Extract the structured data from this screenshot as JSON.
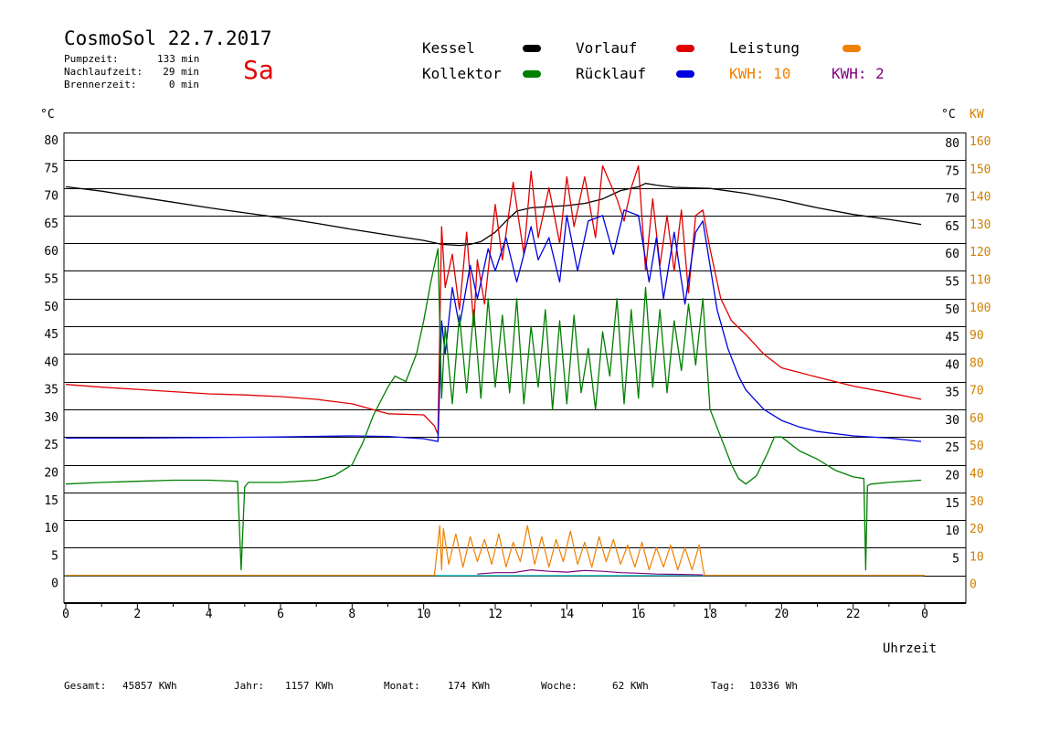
{
  "header": {
    "title": "CosmoSol 22.7.2017",
    "weekday": "Sa",
    "stats": [
      {
        "label": "Pumpzeit:",
        "value": "133 min"
      },
      {
        "label": "Nachlaufzeit:",
        "value": "29 min"
      },
      {
        "label": "Brennerzeit:",
        "value": "0 min"
      }
    ]
  },
  "legend": {
    "items": [
      {
        "label": "Kessel",
        "color": "#000000"
      },
      {
        "label": "Vorlauf",
        "color": "#e00000"
      },
      {
        "label": "Leistung",
        "color": "#f08000"
      },
      {
        "label": "Kollektor",
        "color": "#008000"
      },
      {
        "label": "Rücklauf",
        "color": "#0000e0"
      }
    ],
    "kwh": [
      {
        "label": "KWH: 10",
        "color": "#f08000"
      },
      {
        "label": "KWH: 2",
        "color": "#800080"
      }
    ]
  },
  "footer": {
    "items": [
      {
        "label": "Gesamt:",
        "value": "45857 KWh"
      },
      {
        "label": "Jahr:",
        "value": "1157 KWh"
      },
      {
        "label": "Monat:",
        "value": "174 KWh"
      },
      {
        "label": "Woche:",
        "value": "62 KWh"
      },
      {
        "label": "Tag:",
        "value": "10336 Wh"
      }
    ]
  },
  "chart_data": {
    "type": "line",
    "xlabel": "Uhrzeit",
    "ylabel_left": "°C",
    "ylabel_right": [
      "°C",
      "KW"
    ],
    "xlim": [
      0,
      24
    ],
    "ylim_temp": [
      -5,
      80
    ],
    "ylim_power": [
      0,
      160
    ],
    "x_ticks": [
      "0",
      "2",
      "4",
      "6",
      "8",
      "10",
      "12",
      "14",
      "16",
      "18",
      "20",
      "22",
      "0"
    ],
    "y_ticks_left": [
      "80",
      "75",
      "70",
      "65",
      "60",
      "55",
      "50",
      "45",
      "40",
      "35",
      "30",
      "25",
      "20",
      "15",
      "10",
      "5",
      "0"
    ],
    "y_ticks_right_temp": [
      "80",
      "75",
      "70",
      "65",
      "60",
      "55",
      "50",
      "45",
      "40",
      "35",
      "30",
      "25",
      "20",
      "15",
      "10",
      "5"
    ],
    "y_ticks_right_power": [
      "160",
      "150",
      "140",
      "130",
      "120",
      "110",
      "100",
      "90",
      "80",
      "70",
      "60",
      "50",
      "40",
      "30",
      "20",
      "10",
      "0"
    ],
    "grid": "horizontal",
    "series": [
      {
        "name": "Kessel",
        "color": "#000000",
        "x": [
          0,
          1,
          2,
          3,
          4,
          5,
          6,
          7,
          8,
          9,
          10,
          10.5,
          11,
          11.3,
          11.6,
          12,
          12.3,
          12.6,
          13,
          13.5,
          14,
          14.5,
          15,
          15.5,
          16,
          16.2,
          16.5,
          17,
          17.5,
          18,
          19,
          20,
          21,
          22,
          23,
          23.9
        ],
        "y": [
          70.2,
          69.4,
          68.4,
          67.4,
          66.4,
          65.5,
          64.6,
          63.6,
          62.5,
          61.5,
          60.5,
          59.8,
          59.6,
          59.8,
          60.3,
          62,
          64,
          65.8,
          66.4,
          66.6,
          66.8,
          67.2,
          68,
          69.5,
          70.2,
          70.8,
          70.5,
          70.1,
          70,
          69.9,
          69,
          67.8,
          66.4,
          65.2,
          64.3,
          63.4
        ]
      },
      {
        "name": "Vorlauf",
        "color": "#e00000",
        "x": [
          0,
          1,
          2,
          3,
          4,
          5,
          6,
          7,
          8,
          9,
          10,
          10.3,
          10.4,
          10.5,
          10.6,
          10.8,
          11,
          11.2,
          11.4,
          11.5,
          11.7,
          12,
          12.2,
          12.5,
          12.8,
          13,
          13.2,
          13.5,
          13.8,
          14,
          14.2,
          14.5,
          14.8,
          15,
          15.2,
          15.4,
          15.6,
          15.8,
          16,
          16.2,
          16.4,
          16.6,
          16.8,
          17,
          17.2,
          17.4,
          17.6,
          17.8,
          18,
          18.3,
          18.6,
          19,
          19.5,
          20,
          21,
          22,
          23,
          23.9
        ],
        "y": [
          34.5,
          34,
          33.6,
          33.2,
          32.8,
          32.6,
          32.3,
          31.8,
          31,
          29.2,
          29,
          27,
          25.5,
          63,
          52,
          58,
          48,
          62,
          45,
          57,
          49,
          67,
          57,
          71,
          58,
          73,
          61,
          70,
          60,
          72,
          63,
          72,
          61,
          74,
          71,
          68,
          64,
          70,
          74,
          55,
          68,
          56,
          65,
          55,
          66,
          51,
          65,
          66,
          59,
          50,
          46,
          43.5,
          40,
          37.5,
          35.8,
          34.2,
          33,
          31.8
        ]
      },
      {
        "name": "Rücklauf",
        "color": "#0000e0",
        "x": [
          0,
          2,
          4,
          6,
          8,
          9,
          10,
          10.4,
          10.5,
          10.6,
          10.8,
          11,
          11.3,
          11.5,
          11.8,
          12,
          12.3,
          12.6,
          13,
          13.2,
          13.5,
          13.8,
          14,
          14.3,
          14.6,
          15,
          15.3,
          15.6,
          16,
          16.3,
          16.5,
          16.7,
          17,
          17.3,
          17.6,
          17.8,
          18,
          18.2,
          18.5,
          18.8,
          19,
          19.5,
          20,
          20.5,
          21,
          22,
          23,
          23.9
        ],
        "y": [
          24.8,
          24.8,
          24.9,
          25,
          25.2,
          25.1,
          24.7,
          24.2,
          46,
          40,
          52,
          45,
          56,
          50,
          59,
          55,
          61,
          53,
          63,
          57,
          61,
          53,
          65,
          55,
          64,
          65,
          58,
          66,
          65,
          53,
          61,
          50,
          62,
          49,
          62,
          64,
          56,
          48,
          41,
          36,
          33.5,
          30,
          28,
          26.8,
          26,
          25.2,
          24.8,
          24.2
        ]
      },
      {
        "name": "Kollektor",
        "color": "#008000",
        "x": [
          0,
          1,
          2,
          3,
          4,
          4.8,
          4.9,
          5,
          5.1,
          6,
          7,
          7.5,
          8,
          8.3,
          8.6,
          9,
          9.2,
          9.5,
          9.8,
          10,
          10.2,
          10.4,
          10.5,
          10.6,
          10.8,
          11,
          11.2,
          11.4,
          11.6,
          11.8,
          12,
          12.2,
          12.4,
          12.6,
          12.8,
          13,
          13.2,
          13.4,
          13.6,
          13.8,
          14,
          14.2,
          14.4,
          14.6,
          14.8,
          15,
          15.2,
          15.4,
          15.6,
          15.8,
          16,
          16.2,
          16.4,
          16.6,
          16.8,
          17,
          17.2,
          17.4,
          17.6,
          17.8,
          18,
          18.3,
          18.6,
          18.8,
          19,
          19.3,
          19.6,
          19.8,
          20,
          20.5,
          21,
          21.5,
          22,
          22.3,
          22.35,
          22.4,
          22.5,
          23,
          23.9
        ],
        "y": [
          16.5,
          16.8,
          17,
          17.2,
          17.2,
          17,
          1,
          16,
          16.8,
          16.8,
          17.2,
          18,
          20,
          24,
          29,
          34,
          36,
          35,
          40,
          46,
          53,
          59,
          32,
          45,
          31,
          47,
          33,
          48,
          32,
          50,
          34,
          47,
          33,
          50,
          31,
          45,
          34,
          48,
          30,
          46,
          31,
          47,
          33,
          41,
          30,
          44,
          36,
          50,
          31,
          48,
          32,
          52,
          34,
          48,
          33,
          46,
          37,
          49,
          38,
          50,
          30,
          25,
          20,
          17.5,
          16.5,
          18,
          22,
          25,
          25,
          22.5,
          21,
          19,
          17.8,
          17.5,
          1,
          16.2,
          16.5,
          16.8,
          17.2
        ]
      },
      {
        "name": "Leistung",
        "color": "#f08000",
        "unit": "KW",
        "x": [
          0,
          10.3,
          10.45,
          10.5,
          10.55,
          10.7,
          10.9,
          11.1,
          11.3,
          11.5,
          11.7,
          11.9,
          12.1,
          12.3,
          12.5,
          12.7,
          12.9,
          13.1,
          13.3,
          13.5,
          13.7,
          13.9,
          14.1,
          14.3,
          14.5,
          14.7,
          14.9,
          15.1,
          15.3,
          15.5,
          15.7,
          15.9,
          16.1,
          16.3,
          16.5,
          16.7,
          16.9,
          17.1,
          17.3,
          17.5,
          17.7,
          17.8,
          17.85,
          24
        ],
        "y": [
          0,
          0,
          18,
          2,
          17,
          4,
          15,
          3,
          14,
          5,
          13,
          4,
          15,
          3,
          12,
          5,
          18,
          4,
          14,
          3,
          13,
          5,
          16,
          4,
          12,
          3,
          14,
          5,
          13,
          4,
          11,
          3,
          12,
          2,
          10,
          3,
          11,
          2,
          10,
          2,
          11,
          3,
          0,
          0
        ]
      }
    ],
    "kwh_series": {
      "name": "KWH: 2",
      "color": "#800080",
      "x": [
        11.5,
        12,
        12.5,
        13,
        13.5,
        14,
        14.5,
        15,
        15.5,
        16,
        16.5,
        17,
        17.5,
        17.8
      ],
      "y": [
        0.5,
        1,
        1,
        2,
        1.5,
        1.2,
        1.8,
        1.5,
        1,
        0.8,
        0.5,
        0.4,
        0.3,
        0.2
      ]
    },
    "baseline_color": "#40d0d0"
  }
}
